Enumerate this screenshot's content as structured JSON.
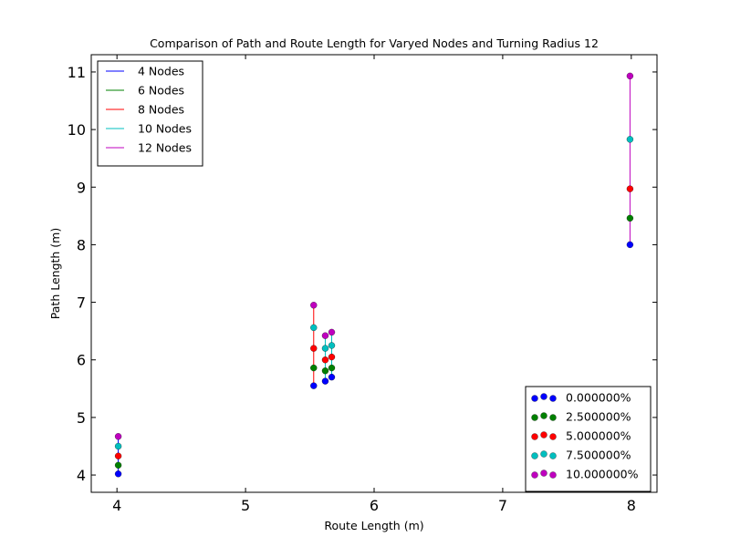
{
  "chart_data": {
    "type": "scatter",
    "title": "Comparison of Path and Route Length for Varyed Nodes and Turning Radius 12",
    "xlabel": "Route Length (m)",
    "ylabel": "Path Length (m)",
    "xlim": [
      3.8,
      8.2
    ],
    "ylim": [
      3.7,
      11.3
    ],
    "xticks": [
      4,
      5,
      6,
      7,
      8
    ],
    "yticks": [
      4,
      5,
      6,
      7,
      8,
      9,
      10,
      11
    ],
    "grid": false,
    "line_series": [
      {
        "name": "4 Nodes",
        "color": "#0000ff",
        "segments": [
          {
            "x": 4.01,
            "y": [
              4.02,
              4.67
            ]
          }
        ]
      },
      {
        "name": "6 Nodes",
        "color": "#008000",
        "segments": []
      },
      {
        "name": "8 Nodes",
        "color": "#ff0000",
        "segments": [
          {
            "x": 5.53,
            "y": [
              5.55,
              6.95
            ]
          }
        ]
      },
      {
        "name": "10 Nodes",
        "color": "#00bfbf",
        "segments": [
          {
            "x": 5.62,
            "y": [
              5.63,
              6.42
            ]
          },
          {
            "x": 5.67,
            "y": [
              5.7,
              6.48
            ]
          }
        ]
      },
      {
        "name": "12 Nodes",
        "color": "#bf00bf",
        "segments": [
          {
            "x": 7.99,
            "y": [
              8.0,
              10.93
            ]
          }
        ]
      }
    ],
    "scatter_series": [
      {
        "name": "0.000000%",
        "color": "#0000ff",
        "points": [
          [
            4.01,
            4.02
          ],
          [
            5.53,
            5.55
          ],
          [
            5.62,
            5.63
          ],
          [
            5.67,
            5.7
          ],
          [
            7.99,
            8.0
          ]
        ]
      },
      {
        "name": "2.500000%",
        "color": "#008000",
        "points": [
          [
            4.01,
            4.17
          ],
          [
            5.53,
            5.86
          ],
          [
            5.62,
            5.81
          ],
          [
            5.67,
            5.86
          ],
          [
            7.99,
            8.46
          ]
        ]
      },
      {
        "name": "5.000000%",
        "color": "#ff0000",
        "points": [
          [
            4.01,
            4.33
          ],
          [
            5.53,
            6.2
          ],
          [
            5.62,
            6.0
          ],
          [
            5.67,
            6.05
          ],
          [
            7.99,
            8.97
          ]
        ]
      },
      {
        "name": "7.500000%",
        "color": "#00bfbf",
        "points": [
          [
            4.01,
            4.5
          ],
          [
            5.53,
            6.56
          ],
          [
            5.62,
            6.2
          ],
          [
            5.67,
            6.25
          ],
          [
            7.99,
            9.83
          ]
        ]
      },
      {
        "name": "10.000000%",
        "color": "#bf00bf",
        "points": [
          [
            4.01,
            4.67
          ],
          [
            5.53,
            6.95
          ],
          [
            5.62,
            6.42
          ],
          [
            5.67,
            6.48
          ],
          [
            7.99,
            10.93
          ]
        ]
      }
    ],
    "legends": [
      {
        "placement": "upper-left",
        "kind": "line",
        "series": "line_series"
      },
      {
        "placement": "lower-right",
        "kind": "scatter",
        "series": "scatter_series"
      }
    ]
  }
}
